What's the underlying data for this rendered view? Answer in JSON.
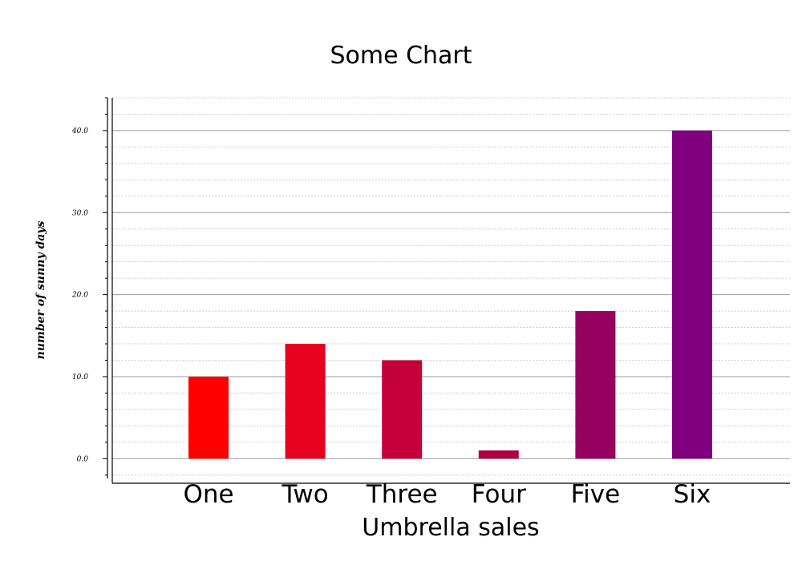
{
  "chart_data": {
    "type": "bar",
    "title": "Some Chart",
    "xlabel": "Umbrella sales",
    "ylabel": "number of sunny days",
    "categories": [
      "One",
      "Two",
      "Three",
      "Four",
      "Five",
      "Six"
    ],
    "values": [
      10,
      14,
      12,
      1,
      18,
      40
    ],
    "ylim": [
      -3,
      44
    ],
    "yticks": [
      0,
      10,
      20,
      30,
      40
    ],
    "ytick_labels": [
      "0.0",
      "10.0",
      "20.0",
      "30.0",
      "40.0"
    ],
    "grid": true,
    "legend": "none",
    "colors": [
      "#ff0000",
      "#e8001f",
      "#c4003b",
      "#b00040",
      "#96005e",
      "#800080"
    ],
    "gridline_color_major": "#999999",
    "gridline_color_minor": "#cccccc"
  }
}
